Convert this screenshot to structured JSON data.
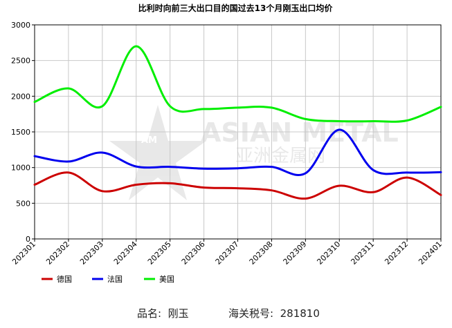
{
  "chart_data": {
    "type": "line",
    "title": "比利时向前三大出口目的国过去13个月刚玉出口均价",
    "categories": [
      "202301",
      "202302",
      "202303",
      "202304",
      "202305",
      "202306",
      "202307",
      "202308",
      "202309",
      "202310",
      "202311",
      "202312",
      "202401"
    ],
    "ylim": [
      0,
      3000
    ],
    "yticks": [
      0,
      500,
      1000,
      1500,
      2000,
      2500,
      3000
    ],
    "grid": true,
    "legend_position": "bottom-left",
    "series": [
      {
        "name": "德国",
        "color": "#cc0000",
        "values": [
          760,
          930,
          670,
          760,
          780,
          720,
          710,
          680,
          565,
          745,
          655,
          860,
          615
        ]
      },
      {
        "name": "法国",
        "color": "#0000ee",
        "values": [
          1160,
          1085,
          1210,
          1015,
          1010,
          985,
          990,
          1010,
          920,
          1530,
          965,
          930,
          935
        ]
      },
      {
        "name": "美国",
        "color": "#00ee00",
        "values": [
          1920,
          2110,
          1860,
          2700,
          1860,
          1820,
          1840,
          1840,
          1680,
          1650,
          1650,
          1660,
          1850
        ]
      }
    ]
  },
  "watermark": {
    "line1": "ASIAN METAL",
    "line2": "亚洲金属网",
    "logo_text": "AM"
  },
  "footer": {
    "product_label": "品名:",
    "product_value": "刚玉",
    "hs_label": "海关税号:",
    "hs_value": "281810"
  }
}
